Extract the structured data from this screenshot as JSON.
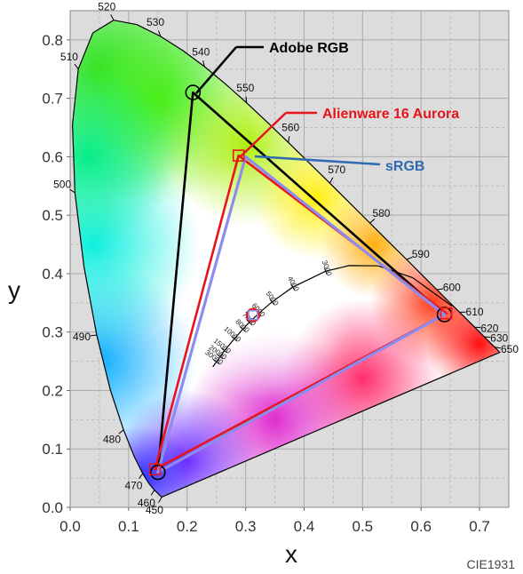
{
  "chart_data": {
    "type": "scatter",
    "footer_label": "CIE1931",
    "xlabel": "x",
    "ylabel": "y",
    "xlim": [
      0.0,
      0.75
    ],
    "ylim": [
      0.0,
      0.85
    ],
    "grid": true,
    "x_ticks": [
      "0.0",
      "0.1",
      "0.2",
      "0.3",
      "0.4",
      "0.5",
      "0.6",
      "0.7"
    ],
    "y_ticks": [
      "0.0",
      "0.1",
      "0.2",
      "0.3",
      "0.4",
      "0.5",
      "0.6",
      "0.7",
      "0.8"
    ],
    "spectral_locus": [
      {
        "nm": 450,
        "x": 0.1566,
        "y": 0.0177,
        "label": "450"
      },
      {
        "nm": 455,
        "x": 0.151,
        "y": 0.0227
      },
      {
        "nm": 460,
        "x": 0.144,
        "y": 0.0297,
        "label": "460"
      },
      {
        "nm": 465,
        "x": 0.1355,
        "y": 0.0399
      },
      {
        "nm": 470,
        "x": 0.1241,
        "y": 0.0578,
        "label": "470"
      },
      {
        "nm": 475,
        "x": 0.1096,
        "y": 0.0868
      },
      {
        "nm": 480,
        "x": 0.0913,
        "y": 0.1327,
        "label": "480"
      },
      {
        "nm": 485,
        "x": 0.0687,
        "y": 0.2007
      },
      {
        "nm": 490,
        "x": 0.0454,
        "y": 0.295,
        "label": "490"
      },
      {
        "nm": 495,
        "x": 0.0235,
        "y": 0.4127
      },
      {
        "nm": 500,
        "x": 0.0082,
        "y": 0.5384,
        "label": "500"
      },
      {
        "nm": 505,
        "x": 0.0039,
        "y": 0.6548
      },
      {
        "nm": 510,
        "x": 0.0139,
        "y": 0.7502,
        "label": "510"
      },
      {
        "nm": 515,
        "x": 0.0389,
        "y": 0.812
      },
      {
        "nm": 520,
        "x": 0.0743,
        "y": 0.8338,
        "label": "520"
      },
      {
        "nm": 525,
        "x": 0.1142,
        "y": 0.8262
      },
      {
        "nm": 530,
        "x": 0.1547,
        "y": 0.8059,
        "label": "530"
      },
      {
        "nm": 535,
        "x": 0.1929,
        "y": 0.7816
      },
      {
        "nm": 540,
        "x": 0.2296,
        "y": 0.7543,
        "label": "540"
      },
      {
        "nm": 545,
        "x": 0.2658,
        "y": 0.7243
      },
      {
        "nm": 550,
        "x": 0.3016,
        "y": 0.6923,
        "label": "550"
      },
      {
        "nm": 555,
        "x": 0.3373,
        "y": 0.6589
      },
      {
        "nm": 560,
        "x": 0.3731,
        "y": 0.6245,
        "label": "560"
      },
      {
        "nm": 565,
        "x": 0.4087,
        "y": 0.5896
      },
      {
        "nm": 570,
        "x": 0.4441,
        "y": 0.5547,
        "label": "570"
      },
      {
        "nm": 575,
        "x": 0.4788,
        "y": 0.5202
      },
      {
        "nm": 580,
        "x": 0.5125,
        "y": 0.4866,
        "label": "580"
      },
      {
        "nm": 585,
        "x": 0.5448,
        "y": 0.4544
      },
      {
        "nm": 590,
        "x": 0.5752,
        "y": 0.4242,
        "label": "590"
      },
      {
        "nm": 595,
        "x": 0.6029,
        "y": 0.3965
      },
      {
        "nm": 600,
        "x": 0.627,
        "y": 0.3725,
        "label": "600"
      },
      {
        "nm": 605,
        "x": 0.6482,
        "y": 0.3514
      },
      {
        "nm": 610,
        "x": 0.6658,
        "y": 0.334,
        "label": "610"
      },
      {
        "nm": 620,
        "x": 0.6915,
        "y": 0.3083,
        "label": "620"
      },
      {
        "nm": 630,
        "x": 0.7079,
        "y": 0.292,
        "label": "630"
      },
      {
        "nm": 640,
        "x": 0.719,
        "y": 0.2809
      },
      {
        "nm": 650,
        "x": 0.726,
        "y": 0.274,
        "label": "650"
      },
      {
        "nm": 700,
        "x": 0.7347,
        "y": 0.2653
      }
    ],
    "planckian_locus": [
      {
        "cct": 1000,
        "x": 0.6528,
        "y": 0.3444
      },
      {
        "cct": 1500,
        "x": 0.5857,
        "y": 0.3931
      },
      {
        "cct": 2000,
        "x": 0.5267,
        "y": 0.4133
      },
      {
        "cct": 2500,
        "x": 0.477,
        "y": 0.4137
      },
      {
        "cct": 3000,
        "x": 0.4369,
        "y": 0.4041,
        "label": "3000"
      },
      {
        "cct": 4000,
        "x": 0.3805,
        "y": 0.3768,
        "label": "4000"
      },
      {
        "cct": 5000,
        "x": 0.3451,
        "y": 0.3516,
        "label": "5000"
      },
      {
        "cct": 6000,
        "x": 0.3221,
        "y": 0.3318,
        "label": "6000"
      },
      {
        "cct": 7000,
        "x": 0.3064,
        "y": 0.3166,
        "label": "7000"
      },
      {
        "cct": 8000,
        "x": 0.2952,
        "y": 0.3048,
        "label": "8000"
      },
      {
        "cct": 10000,
        "x": 0.2807,
        "y": 0.2884,
        "label": "10000"
      },
      {
        "cct": 15000,
        "x": 0.2637,
        "y": 0.2683,
        "label": "15000"
      },
      {
        "cct": 20000,
        "x": 0.2565,
        "y": 0.2577,
        "label": "20000"
      },
      {
        "cct": 30000,
        "x": 0.2501,
        "y": 0.2489,
        "label": "30000"
      },
      {
        "cct": 60000,
        "x": 0.244,
        "y": 0.2404
      }
    ],
    "series": [
      {
        "name": "Adobe RGB",
        "color": "#000000",
        "points": [
          {
            "x": 0.64,
            "y": 0.33
          },
          {
            "x": 0.21,
            "y": 0.71
          },
          {
            "x": 0.15,
            "y": 0.06
          }
        ],
        "white_point": {
          "x": 0.3127,
          "y": 0.329
        }
      },
      {
        "name": "Alienware 16 Aurora",
        "color": "#e8141b",
        "points": [
          {
            "x": 0.643,
            "y": 0.332
          },
          {
            "x": 0.288,
            "y": 0.602
          },
          {
            "x": 0.145,
            "y": 0.065
          }
        ],
        "white_point": {
          "x": 0.3127,
          "y": 0.329
        }
      },
      {
        "name": "sRGB",
        "color": "#2e6bb0",
        "points": [
          {
            "x": 0.64,
            "y": 0.33
          },
          {
            "x": 0.3,
            "y": 0.6
          },
          {
            "x": 0.15,
            "y": 0.06
          }
        ],
        "white_point": {
          "x": 0.3127,
          "y": 0.329
        }
      }
    ]
  }
}
